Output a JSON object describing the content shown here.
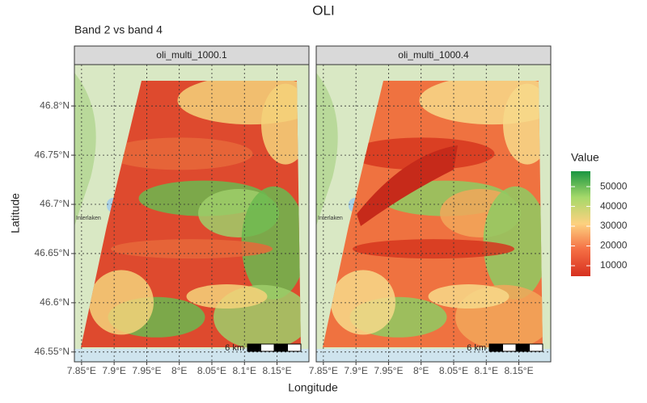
{
  "chart_data": {
    "type": "raster-map",
    "title": "OLI",
    "subtitle": "Band 2 vs band 4",
    "xlabel": "Longitude",
    "ylabel": "Latitude",
    "panels": [
      {
        "title": "oli_multi_1000.1",
        "base": "#de4a2e",
        "patches": [
          "#e8683a",
          "#9fce6a",
          "#6bb84f",
          "#f4d27a"
        ]
      },
      {
        "title": "oli_multi_1000.4",
        "base": "#ef7240",
        "patches": [
          "#d6361f",
          "#f2a75a",
          "#8ecb63",
          "#f7d98a"
        ]
      }
    ],
    "xlim": [
      7.839,
      8.199
    ],
    "ylim": [
      46.54,
      46.842
    ],
    "xticks": [
      {
        "value": 7.85,
        "label": "7.85°E"
      },
      {
        "value": 7.9,
        "label": "7.9°E"
      },
      {
        "value": 7.95,
        "label": "7.95°E"
      },
      {
        "value": 8.0,
        "label": "8°E"
      },
      {
        "value": 8.05,
        "label": "8.05°E"
      },
      {
        "value": 8.1,
        "label": "8.1°E"
      },
      {
        "value": 8.15,
        "label": "8.15°E"
      }
    ],
    "yticks": [
      {
        "value": 46.55,
        "label": "46.55°N"
      },
      {
        "value": 46.6,
        "label": "46.6°N"
      },
      {
        "value": 46.65,
        "label": "46.65°N"
      },
      {
        "value": 46.7,
        "label": "46.7°N"
      },
      {
        "value": 46.75,
        "label": "46.75°N"
      },
      {
        "value": 46.8,
        "label": "46.8°N"
      }
    ],
    "grid": true,
    "map_label": "Interlaken",
    "scale_bar": "6 km",
    "legend": {
      "title": "Value",
      "lim": [
        4700,
        57800
      ],
      "ticks": [
        10000,
        20000,
        30000,
        40000,
        50000
      ],
      "colors": [
        "#d7301f",
        "#f46d43",
        "#fdd17f",
        "#a6d96a",
        "#1a9641"
      ]
    }
  }
}
